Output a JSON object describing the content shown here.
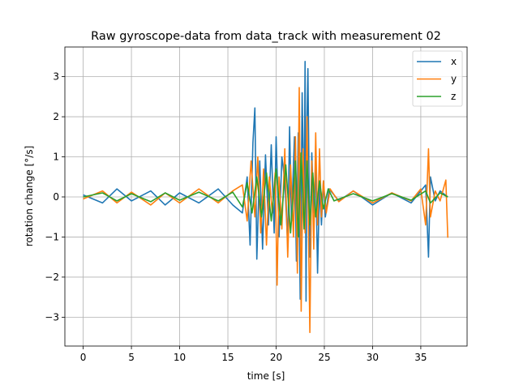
{
  "chart_data": {
    "type": "line",
    "title": "Raw gyroscope-data from data_track with measurement 02",
    "xlabel": "time [s]",
    "ylabel": "rotation change [°/s]",
    "xlim": [
      -1.9,
      39.8
    ],
    "ylim": [
      -3.72,
      3.74
    ],
    "xticks": [
      0,
      5,
      10,
      15,
      20,
      25,
      30,
      35
    ],
    "yticks": [
      -3,
      -2,
      -1,
      0,
      1,
      2,
      3
    ],
    "grid": true,
    "legend_position": "top-right",
    "series": [
      {
        "name": "x",
        "color": "#1f77b4",
        "points": [
          [
            0.0,
            0.05
          ],
          [
            2.0,
            -0.15
          ],
          [
            3.5,
            0.2
          ],
          [
            5.0,
            -0.1
          ],
          [
            7.0,
            0.15
          ],
          [
            8.5,
            -0.2
          ],
          [
            10.0,
            0.1
          ],
          [
            12.0,
            -0.15
          ],
          [
            14.0,
            0.2
          ],
          [
            15.5,
            -0.2
          ],
          [
            16.5,
            -0.4
          ],
          [
            17.0,
            0.5
          ],
          [
            17.3,
            -1.2
          ],
          [
            17.6,
            1.35
          ],
          [
            17.8,
            2.22
          ],
          [
            18.0,
            -1.55
          ],
          [
            18.3,
            0.9
          ],
          [
            18.6,
            -1.3
          ],
          [
            18.9,
            1.05
          ],
          [
            19.2,
            -0.7
          ],
          [
            19.5,
            1.3
          ],
          [
            19.8,
            -0.9
          ],
          [
            20.0,
            1.5
          ],
          [
            20.3,
            -1.0
          ],
          [
            20.6,
            1.0
          ],
          [
            20.9,
            0.4
          ],
          [
            21.2,
            -1.2
          ],
          [
            21.4,
            1.75
          ],
          [
            21.6,
            -0.6
          ],
          [
            21.9,
            1.5
          ],
          [
            22.1,
            -1.6
          ],
          [
            22.3,
            1.6
          ],
          [
            22.5,
            -2.55
          ],
          [
            22.7,
            2.6
          ],
          [
            22.9,
            -0.5
          ],
          [
            23.0,
            3.38
          ],
          [
            23.1,
            -2.6
          ],
          [
            23.2,
            2.0
          ],
          [
            23.3,
            3.2
          ],
          [
            23.5,
            -1.5
          ],
          [
            23.7,
            1.1
          ],
          [
            23.9,
            -0.4
          ],
          [
            24.1,
            0.8
          ],
          [
            24.3,
            -1.9
          ],
          [
            24.5,
            0.3
          ],
          [
            24.7,
            -0.7
          ],
          [
            24.9,
            0.4
          ],
          [
            25.1,
            -0.5
          ],
          [
            25.5,
            0.2
          ],
          [
            26.5,
            -0.1
          ],
          [
            28.0,
            0.15
          ],
          [
            30.0,
            -0.2
          ],
          [
            32.0,
            0.1
          ],
          [
            34.0,
            -0.15
          ],
          [
            35.5,
            0.3
          ],
          [
            35.8,
            -1.5
          ],
          [
            36.0,
            0.5
          ],
          [
            36.5,
            -0.1
          ],
          [
            37.0,
            0.15
          ],
          [
            37.8,
            0.0
          ]
        ]
      },
      {
        "name": "y",
        "color": "#ff7f0e",
        "points": [
          [
            0.0,
            -0.05
          ],
          [
            2.0,
            0.15
          ],
          [
            3.5,
            -0.15
          ],
          [
            5.0,
            0.12
          ],
          [
            7.0,
            -0.2
          ],
          [
            8.5,
            0.1
          ],
          [
            10.0,
            -0.15
          ],
          [
            12.0,
            0.2
          ],
          [
            14.0,
            -0.15
          ],
          [
            15.5,
            0.15
          ],
          [
            16.5,
            0.3
          ],
          [
            17.0,
            -0.6
          ],
          [
            17.4,
            0.9
          ],
          [
            17.8,
            -0.5
          ],
          [
            18.1,
            1.0
          ],
          [
            18.4,
            -0.9
          ],
          [
            18.7,
            0.7
          ],
          [
            19.0,
            -1.2
          ],
          [
            19.3,
            0.5
          ],
          [
            19.6,
            -0.4
          ],
          [
            19.9,
            0.6
          ],
          [
            20.1,
            -2.2
          ],
          [
            20.3,
            0.5
          ],
          [
            20.6,
            -0.8
          ],
          [
            20.9,
            1.2
          ],
          [
            21.2,
            -1.5
          ],
          [
            21.5,
            0.8
          ],
          [
            21.8,
            -1.0
          ],
          [
            22.0,
            1.5
          ],
          [
            22.2,
            -1.9
          ],
          [
            22.4,
            2.73
          ],
          [
            22.6,
            -2.85
          ],
          [
            22.8,
            1.2
          ],
          [
            23.0,
            -0.9
          ],
          [
            23.2,
            2.0
          ],
          [
            23.4,
            -1.6
          ],
          [
            23.5,
            -3.38
          ],
          [
            23.7,
            0.9
          ],
          [
            23.9,
            -1.3
          ],
          [
            24.1,
            1.6
          ],
          [
            24.3,
            -0.7
          ],
          [
            24.5,
            1.2
          ],
          [
            24.7,
            -0.5
          ],
          [
            24.9,
            0.4
          ],
          [
            25.2,
            -0.4
          ],
          [
            25.6,
            0.2
          ],
          [
            26.5,
            -0.12
          ],
          [
            28.0,
            0.15
          ],
          [
            30.0,
            -0.15
          ],
          [
            32.0,
            0.1
          ],
          [
            34.0,
            -0.1
          ],
          [
            35.0,
            0.2
          ],
          [
            35.5,
            -0.7
          ],
          [
            35.8,
            1.2
          ],
          [
            36.0,
            -0.5
          ],
          [
            36.5,
            0.15
          ],
          [
            37.0,
            -0.1
          ],
          [
            37.6,
            0.42
          ],
          [
            37.8,
            -1.02
          ]
        ]
      },
      {
        "name": "z",
        "color": "#2ca02c",
        "points": [
          [
            0.0,
            0.0
          ],
          [
            2.0,
            0.1
          ],
          [
            3.5,
            -0.1
          ],
          [
            5.0,
            0.08
          ],
          [
            7.0,
            -0.12
          ],
          [
            8.5,
            0.1
          ],
          [
            10.0,
            -0.08
          ],
          [
            12.0,
            0.12
          ],
          [
            14.0,
            -0.1
          ],
          [
            15.5,
            0.12
          ],
          [
            16.5,
            -0.25
          ],
          [
            17.0,
            0.35
          ],
          [
            17.5,
            -0.4
          ],
          [
            18.0,
            0.5
          ],
          [
            18.5,
            -0.5
          ],
          [
            19.0,
            0.6
          ],
          [
            19.5,
            -0.6
          ],
          [
            20.0,
            0.7
          ],
          [
            20.5,
            -0.7
          ],
          [
            21.0,
            0.8
          ],
          [
            21.5,
            -0.9
          ],
          [
            22.0,
            0.9
          ],
          [
            22.3,
            -1.0
          ],
          [
            22.6,
            1.1
          ],
          [
            22.9,
            -0.8
          ],
          [
            23.2,
            0.9
          ],
          [
            23.5,
            -0.7
          ],
          [
            23.8,
            0.6
          ],
          [
            24.1,
            -0.5
          ],
          [
            24.5,
            0.4
          ],
          [
            24.9,
            -0.3
          ],
          [
            25.4,
            0.2
          ],
          [
            26.0,
            -0.1
          ],
          [
            28.0,
            0.08
          ],
          [
            30.0,
            -0.1
          ],
          [
            32.0,
            0.08
          ],
          [
            34.0,
            -0.08
          ],
          [
            35.5,
            0.15
          ],
          [
            36.0,
            -0.15
          ],
          [
            37.0,
            0.1
          ],
          [
            37.8,
            0.0
          ]
        ]
      }
    ]
  }
}
